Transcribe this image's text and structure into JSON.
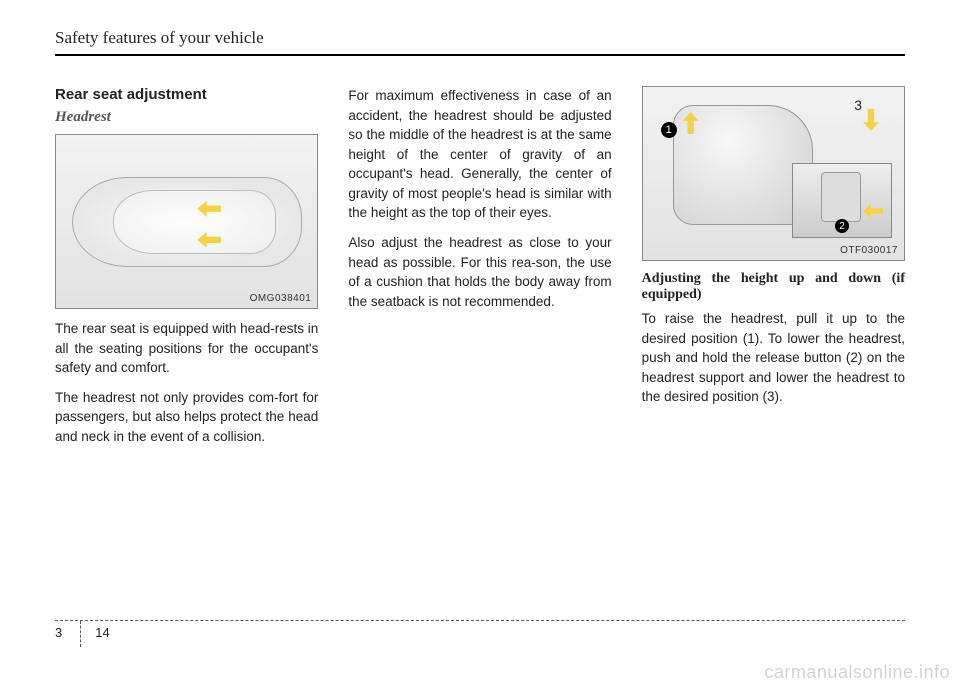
{
  "header": {
    "title": "Safety features of your vehicle"
  },
  "col1": {
    "heading": "Rear seat adjustment",
    "subheading": "Headrest",
    "fig_code": "OMG038401",
    "p1": "The rear seat is equipped with head-rests in all the seating positions for the occupant's safety and comfort.",
    "p2": "The headrest not only provides com-fort for passengers, but also helps protect the head and neck in the event of a collision."
  },
  "col2": {
    "p1": "For maximum effectiveness in case of an accident, the headrest should be adjusted so the middle of the headrest is at the same height of the center of gravity of an occupant's head. Generally, the center of gravity of most people's head is similar with the height as the top of their eyes.",
    "p2": "Also adjust the headrest as close to your head as possible. For this rea-son, the use of a cushion that holds the body away from the seatback is not recommended."
  },
  "col3": {
    "fig_code": "OTF030017",
    "fig_label3": "3",
    "callout1": "1",
    "callout2": "2",
    "subheading": "Adjusting the height up and down (if equipped)",
    "p1": "To raise the headrest, pull it up to the desired position (1). To lower the headrest, push and hold the release button (2) on the headrest support and lower the headrest to the desired position (3)."
  },
  "footer": {
    "chapter": "3",
    "page": "14"
  },
  "watermark": "carmanualsonline.info"
}
